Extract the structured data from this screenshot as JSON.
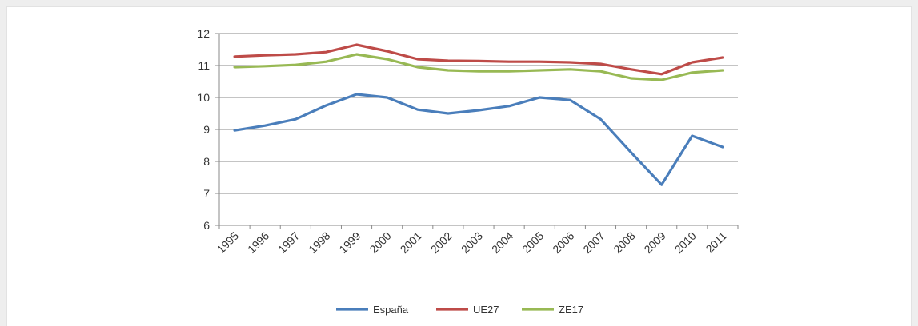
{
  "chart_data": {
    "type": "line",
    "title": "",
    "xlabel": "",
    "ylabel": "",
    "x": [
      "1995",
      "1996",
      "1997",
      "1998",
      "1999",
      "2000",
      "2001",
      "2002",
      "2003",
      "2004",
      "2005",
      "2006",
      "2007",
      "2008",
      "2009",
      "2010",
      "2011"
    ],
    "ylim": [
      6,
      12
    ],
    "yticks": [
      "6",
      "7",
      "8",
      "9",
      "10",
      "11",
      "12"
    ],
    "grid": "horizontal",
    "legend": "bottom",
    "series": [
      {
        "name": "España",
        "color": "#4a7ebb",
        "values": [
          8.97,
          9.12,
          9.32,
          9.75,
          10.1,
          10.0,
          9.62,
          9.5,
          9.6,
          9.73,
          10.0,
          9.92,
          9.32,
          8.28,
          7.27,
          8.8,
          8.45
        ]
      },
      {
        "name": "UE27",
        "color": "#be4b48",
        "values": [
          11.28,
          11.32,
          11.35,
          11.42,
          11.65,
          11.45,
          11.2,
          11.15,
          11.14,
          11.12,
          11.12,
          11.1,
          11.05,
          10.88,
          10.73,
          11.1,
          11.25
        ]
      },
      {
        "name": "ZE17",
        "color": "#98b954",
        "values": [
          10.95,
          10.98,
          11.02,
          11.12,
          11.35,
          11.2,
          10.95,
          10.85,
          10.82,
          10.82,
          10.85,
          10.88,
          10.82,
          10.6,
          10.55,
          10.78,
          10.85
        ]
      }
    ]
  }
}
